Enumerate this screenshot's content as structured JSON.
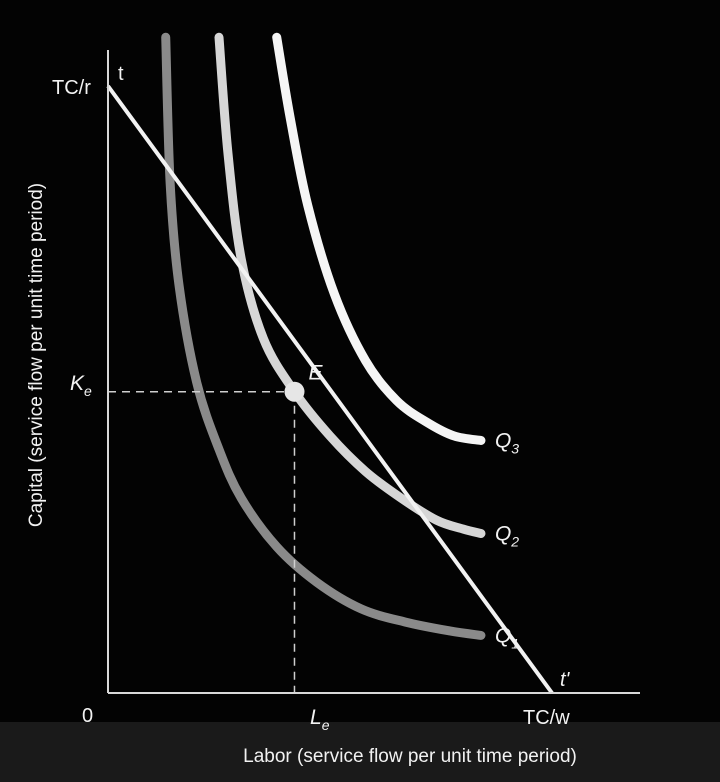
{
  "chart_data": {
    "type": "line",
    "title": "",
    "xlabel": "Labor (service flow per unit time period)",
    "ylabel": "Capital (service flow per unit time period)",
    "origin_label": "0",
    "x_tick_labels": [
      "L",
      "TC/w"
    ],
    "x_tick_subscripts": [
      "e",
      ""
    ],
    "y_tick_labels": [
      "K",
      "TC/r"
    ],
    "y_tick_subscripts": [
      "e",
      ""
    ],
    "xlim": [
      0,
      10
    ],
    "ylim": [
      0,
      14
    ],
    "grid": false,
    "equilibrium": {
      "label": "E",
      "x": 4.2,
      "y": 6.8
    },
    "isocost_line": {
      "start_label": "t",
      "end_label": "t'",
      "x": [
        0,
        10
      ],
      "y": [
        13.7,
        0
      ]
    },
    "series": [
      {
        "name": "Q",
        "subscript": "1",
        "color": "#8a8a8a",
        "x": [
          1.3,
          1.4,
          1.6,
          2.0,
          2.5,
          3.0,
          3.8,
          4.7,
          5.7,
          6.7,
          7.7,
          8.4
        ],
        "y": [
          14.8,
          11.5,
          9.2,
          7.0,
          5.5,
          4.4,
          3.3,
          2.5,
          1.9,
          1.6,
          1.4,
          1.3
        ]
      },
      {
        "name": "Q",
        "subscript": "2",
        "color": "#d6d6d6",
        "x": [
          2.5,
          2.7,
          3.0,
          3.5,
          4.2,
          5.0,
          5.8,
          6.6,
          7.4,
          8.0,
          8.4
        ],
        "y": [
          14.8,
          12.2,
          9.8,
          8.0,
          6.8,
          5.8,
          5.0,
          4.4,
          3.9,
          3.7,
          3.6
        ]
      },
      {
        "name": "Q",
        "subscript": "3",
        "color": "#f5f5f5",
        "x": [
          3.8,
          4.1,
          4.5,
          5.1,
          5.8,
          6.5,
          7.2,
          7.8,
          8.4
        ],
        "y": [
          14.8,
          13.0,
          11.0,
          9.0,
          7.5,
          6.6,
          6.1,
          5.8,
          5.7
        ]
      }
    ]
  }
}
